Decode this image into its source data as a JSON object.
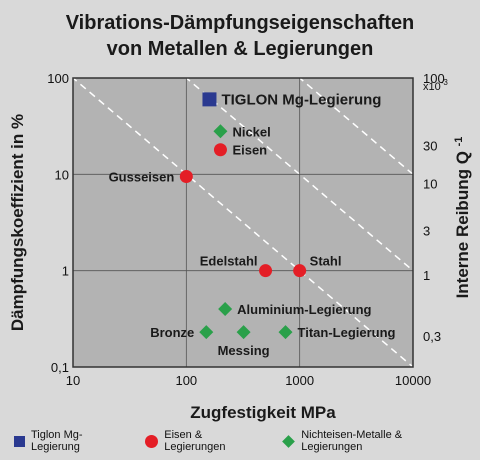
{
  "title_line1": "Vibrations-Dämpfungseigenschaften",
  "title_line2": "von Metallen & Legierungen",
  "colors": {
    "tiglon": "#2a3990",
    "eisen": "#e41e26",
    "nichteisen": "#2aa04a",
    "plot_bg": "#b3b3b3",
    "page_bg": "#d9d9d9"
  },
  "legend": [
    {
      "label": "Tiglon Mg-Legierung",
      "shape": "square",
      "color": "#2a3990"
    },
    {
      "label": "Eisen & Legierungen",
      "shape": "circle",
      "color": "#e41e26"
    },
    {
      "label": "Nichteisen-Metalle & Legierungen",
      "shape": "diamond",
      "color": "#2aa04a"
    }
  ],
  "chart_data": {
    "type": "scatter",
    "xlabel": "Zugfestigkeit MPa",
    "ylabel": "Dämpfungskoeffizient in %",
    "y2label": "Interne Reibung Q",
    "y2label_sup": "-1",
    "y2_multiplier": "x10",
    "y2_multiplier_sup": "-3",
    "x_scale": "log",
    "y_scale": "log",
    "xlim": [
      10,
      10000
    ],
    "ylim": [
      0.1,
      100
    ],
    "x_ticks": [
      {
        "value": 10,
        "label": "10"
      },
      {
        "value": 100,
        "label": "100"
      },
      {
        "value": 1000,
        "label": "1000"
      },
      {
        "value": 10000,
        "label": "10000"
      }
    ],
    "y_ticks": [
      {
        "value": 100,
        "label": "100"
      },
      {
        "value": 10,
        "label": "10"
      },
      {
        "value": 1,
        "label": "1"
      },
      {
        "value": 0.1,
        "label": "0,1"
      }
    ],
    "y2_ticks": [
      {
        "value": 100,
        "label": "100"
      },
      {
        "value": 30,
        "label": "30"
      },
      {
        "value": 10,
        "label": "10"
      },
      {
        "value": 3,
        "label": "3"
      },
      {
        "value": 1,
        "label": "1"
      },
      {
        "value": 0.3,
        "label": "0,3"
      }
    ],
    "grid": true,
    "series": [
      {
        "name": "Tiglon Mg-Legierung",
        "marker": "square",
        "color": "#2a3990",
        "points": [
          {
            "label": "TIGLON Mg-Legierung",
            "x": 160,
            "y": 60,
            "label_pos": "right",
            "bold": true
          }
        ]
      },
      {
        "name": "Eisen & Legierungen",
        "marker": "circle",
        "color": "#e41e26",
        "points": [
          {
            "label": "Eisen",
            "x": 200,
            "y": 18,
            "label_pos": "right"
          },
          {
            "label": "Gusseisen",
            "x": 100,
            "y": 9.5,
            "label_pos": "left"
          },
          {
            "label": "Edelstahl",
            "x": 500,
            "y": 1,
            "label_pos": "above-left"
          },
          {
            "label": "Stahl",
            "x": 1000,
            "y": 1,
            "label_pos": "above-right"
          }
        ]
      },
      {
        "name": "Nichteisen-Metalle & Legierungen",
        "marker": "diamond",
        "color": "#2aa04a",
        "points": [
          {
            "label": "Nickel",
            "x": 200,
            "y": 28,
            "label_pos": "right"
          },
          {
            "label": "Aluminium-Legierung",
            "x": 220,
            "y": 0.4,
            "label_pos": "right"
          },
          {
            "label": "Bronze",
            "x": 150,
            "y": 0.23,
            "label_pos": "left"
          },
          {
            "label": "Messing",
            "x": 320,
            "y": 0.23,
            "label_pos": "below"
          },
          {
            "label": "Titan-Legierung",
            "x": 750,
            "y": 0.23,
            "label_pos": "right"
          }
        ]
      }
    ]
  }
}
